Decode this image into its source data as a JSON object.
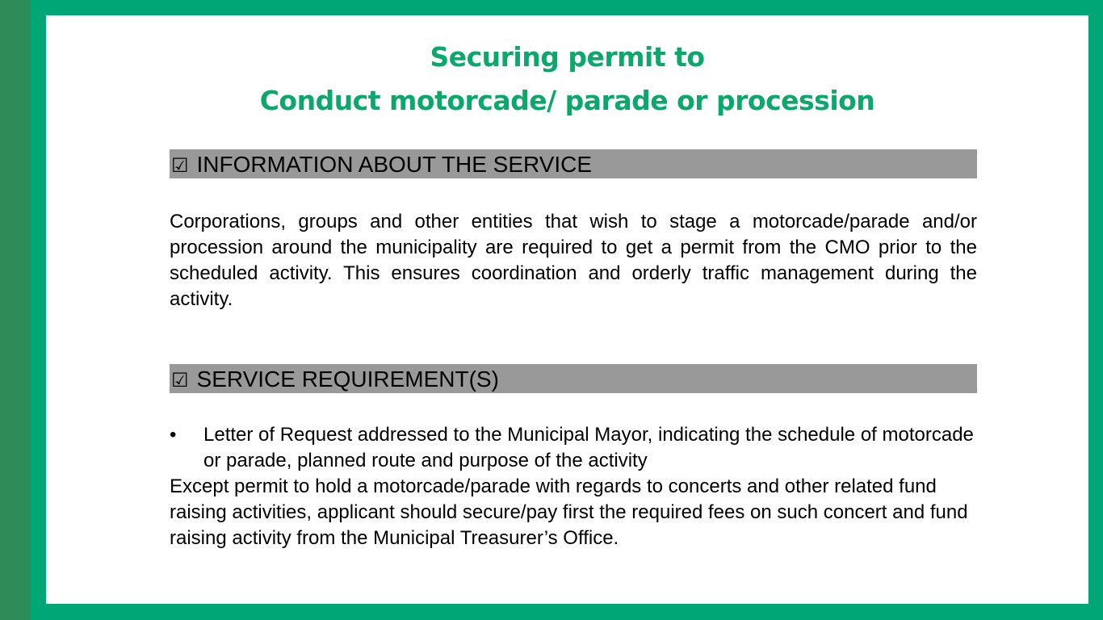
{
  "slide": {
    "title_line1": "Securing permit to",
    "title_line2": "Conduct motorcade/ parade or procession"
  },
  "sections": {
    "info": {
      "check_glyph": "☑",
      "heading": "INFORMATION ABOUT THE SERVICE",
      "body": "Corporations, groups and other entities that wish to stage a motorcade/parade and/or procession around the municipality are required to get a permit from the CMO prior to the scheduled activity.  This ensures coordination and orderly traffic management during the activity."
    },
    "requirements": {
      "check_glyph": "☑",
      "heading": "SERVICE REQUIREMENT(S)",
      "bullet_glyph": "•",
      "items": [
        "Letter of Request addressed to the Municipal Mayor, indicating the schedule of motorcade or parade, planned route and purpose of the activity"
      ],
      "note": "Except permit to hold a motorcade/parade with regards to concerts and other related fund raising activities, applicant should secure/pay first the required fees on such concert and fund raising activity from the Municipal Treasurer’s Office."
    }
  },
  "colors": {
    "frame_green": "#00a676",
    "left_stripe_green": "#2d8b57",
    "title_green": "#0aa86a",
    "section_bar_gray": "#999999"
  },
  "icons": {
    "section_check": "checkbox-checked-icon",
    "list_bullet": "bullet-icon"
  }
}
